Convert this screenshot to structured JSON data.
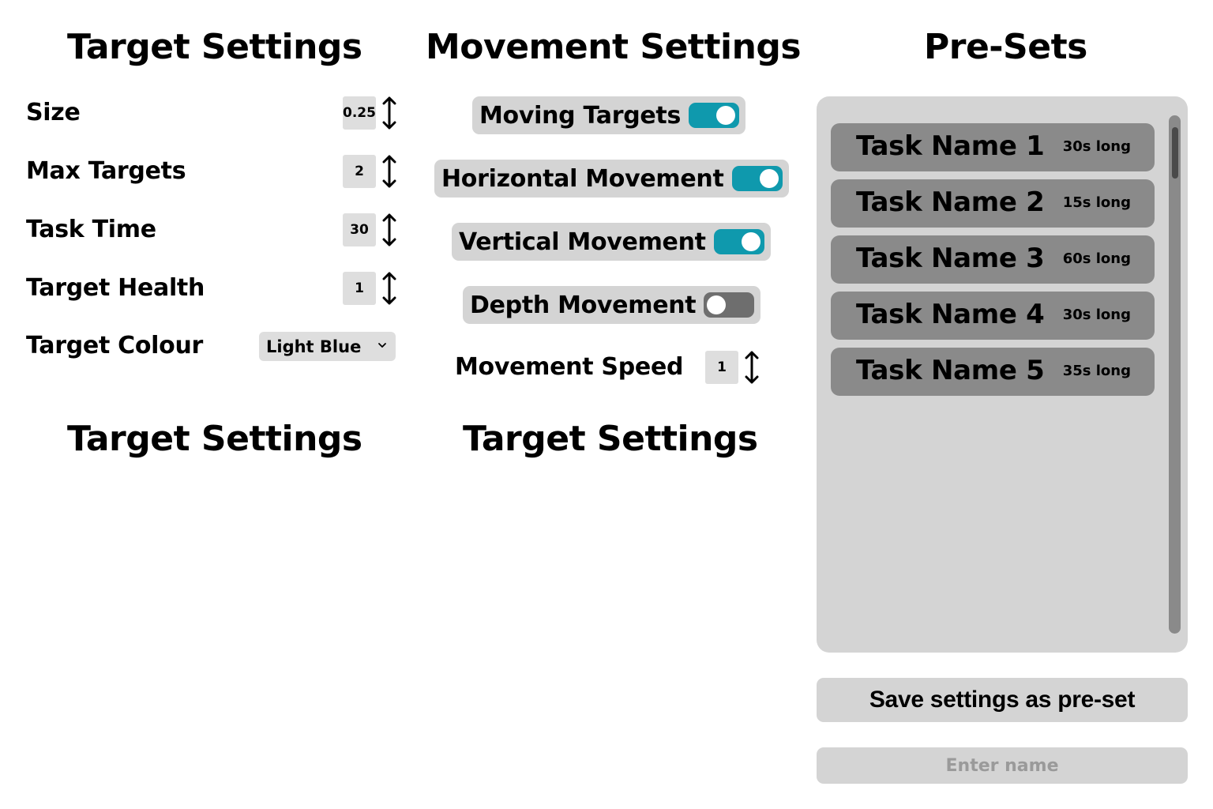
{
  "target_settings": {
    "heading": "Target Settings",
    "rows": [
      {
        "label": "Size",
        "value": "0.25"
      },
      {
        "label": "Max Targets",
        "value": "2"
      },
      {
        "label": "Task Time",
        "value": "30"
      },
      {
        "label": "Target Health",
        "value": "1"
      }
    ],
    "colour": {
      "label": "Target Colour",
      "selected": "Light Blue"
    }
  },
  "movement_settings": {
    "heading": "Movement Settings",
    "toggles": [
      {
        "label": "Moving Targets",
        "on": true
      },
      {
        "label": "Horizontal Movement",
        "on": true
      },
      {
        "label": "Vertical Movement",
        "on": true
      },
      {
        "label": "Depth Movement",
        "on": false
      }
    ],
    "speed": {
      "label": "Movement Speed",
      "value": "1"
    }
  },
  "lower_headings": [
    "Target Settings",
    "Target Settings"
  ],
  "presets": {
    "heading": "Pre-Sets",
    "items": [
      {
        "name": "Task Name 1",
        "duration": "30s long"
      },
      {
        "name": "Task Name 2",
        "duration": "15s long"
      },
      {
        "name": "Task Name 3",
        "duration": "60s long"
      },
      {
        "name": "Task Name 4",
        "duration": "30s long"
      },
      {
        "name": "Task Name 5",
        "duration": "35s long"
      }
    ],
    "save_label": "Save settings as pre-set",
    "name_placeholder": "Enter name"
  },
  "colors": {
    "toggle_on": "#0f99ad",
    "toggle_off": "#6e6e6e",
    "panel": "#d4d4d4",
    "task_item": "#8a8a8a"
  }
}
